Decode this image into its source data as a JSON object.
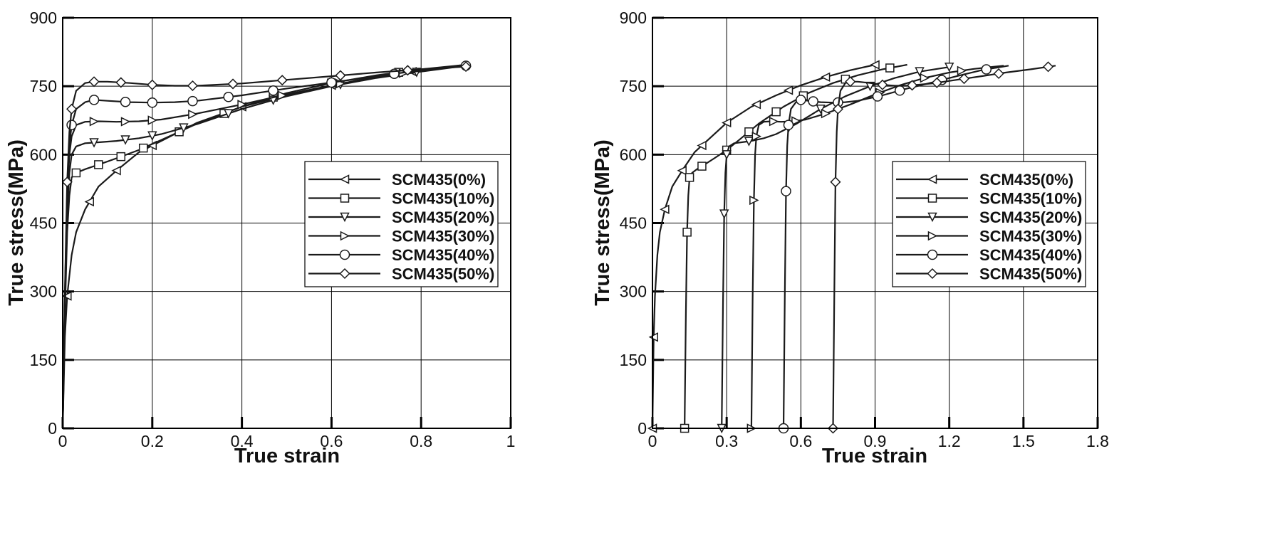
{
  "chart_data": [
    {
      "type": "line",
      "xlabel": "True strain",
      "ylabel": "True stress(MPa)",
      "xlim": [
        0,
        1
      ],
      "ylim": [
        0,
        900
      ],
      "xticks": [
        0,
        0.2,
        0.4,
        0.6,
        0.8,
        1
      ],
      "xtick_labels": [
        "0",
        "0.2",
        "0.4",
        "0.6",
        "0.8",
        "1"
      ],
      "yticks": [
        0,
        150,
        300,
        450,
        600,
        750,
        900
      ],
      "ytick_labels": [
        "0",
        "150",
        "300",
        "450",
        "600",
        "750",
        "900"
      ],
      "grid": true,
      "legend_position": "center-right",
      "series": [
        {
          "name": "SCM435(0%)",
          "marker": "triangle-left",
          "x": [
            0,
            0.005,
            0.01,
            0.02,
            0.03,
            0.05,
            0.08,
            0.12,
            0.17,
            0.22,
            0.3,
            0.4,
            0.5,
            0.6,
            0.7,
            0.8,
            0.9
          ],
          "y": [
            0,
            200,
            290,
            380,
            430,
            480,
            530,
            565,
            605,
            630,
            670,
            705,
            730,
            752,
            770,
            785,
            797
          ],
          "marker_x": [
            0.01,
            0.06,
            0.12,
            0.2,
            0.4,
            0.6,
            0.78
          ]
        },
        {
          "name": "SCM435(10%)",
          "marker": "square",
          "x": [
            0,
            0.005,
            0.01,
            0.015,
            0.02,
            0.03,
            0.05,
            0.08,
            0.12,
            0.17,
            0.22,
            0.3,
            0.4,
            0.5,
            0.6,
            0.7,
            0.8,
            0.9
          ],
          "y": [
            0,
            250,
            430,
            510,
            550,
            560,
            568,
            578,
            592,
            610,
            632,
            668,
            705,
            735,
            757,
            774,
            787,
            797
          ],
          "marker_x": [
            0.03,
            0.08,
            0.13,
            0.18,
            0.26,
            0.36,
            0.47,
            0.6,
            0.75
          ]
        },
        {
          "name": "SCM435(20%)",
          "marker": "triangle-down",
          "x": [
            0,
            0.005,
            0.01,
            0.015,
            0.02,
            0.03,
            0.05,
            0.08,
            0.12,
            0.17,
            0.22,
            0.3,
            0.4,
            0.5,
            0.6,
            0.7,
            0.8,
            0.9
          ],
          "y": [
            0,
            270,
            470,
            560,
            600,
            618,
            625,
            627,
            630,
            636,
            645,
            667,
            700,
            728,
            750,
            768,
            782,
            795
          ],
          "marker_x": [
            0.07,
            0.14,
            0.2,
            0.27,
            0.37,
            0.47,
            0.62,
            0.79
          ]
        },
        {
          "name": "SCM435(30%)",
          "marker": "triangle-right",
          "x": [
            0,
            0.005,
            0.01,
            0.015,
            0.02,
            0.03,
            0.05,
            0.08,
            0.12,
            0.17,
            0.22,
            0.3,
            0.4,
            0.5,
            0.6,
            0.7,
            0.8,
            0.9
          ],
          "y": [
            0,
            280,
            500,
            600,
            640,
            665,
            672,
            673,
            672,
            673,
            677,
            690,
            710,
            732,
            752,
            770,
            784,
            795
          ],
          "marker_x": [
            0.07,
            0.14,
            0.2,
            0.29,
            0.4,
            0.49,
            0.62,
            0.76
          ]
        },
        {
          "name": "SCM435(40%)",
          "marker": "circle",
          "x": [
            0,
            0.005,
            0.01,
            0.015,
            0.02,
            0.03,
            0.05,
            0.07,
            0.1,
            0.15,
            0.2,
            0.25,
            0.3,
            0.4,
            0.5,
            0.6,
            0.7,
            0.8,
            0.9
          ],
          "y": [
            0,
            290,
            520,
            620,
            665,
            700,
            715,
            720,
            718,
            715,
            714,
            715,
            718,
            730,
            745,
            758,
            772,
            785,
            795
          ],
          "marker_x": [
            0.02,
            0.07,
            0.14,
            0.2,
            0.29,
            0.37,
            0.47,
            0.6,
            0.74,
            0.9
          ]
        },
        {
          "name": "SCM435(50%)",
          "marker": "diamond",
          "x": [
            0,
            0.005,
            0.01,
            0.015,
            0.02,
            0.03,
            0.05,
            0.07,
            0.1,
            0.15,
            0.2,
            0.25,
            0.3,
            0.4,
            0.5,
            0.6,
            0.7,
            0.8,
            0.9
          ],
          "y": [
            0,
            300,
            540,
            650,
            700,
            740,
            757,
            760,
            760,
            757,
            753,
            751,
            751,
            756,
            764,
            772,
            780,
            787,
            793
          ],
          "marker_x": [
            0.01,
            0.02,
            0.07,
            0.13,
            0.2,
            0.29,
            0.38,
            0.49,
            0.62,
            0.77,
            0.9
          ]
        }
      ]
    },
    {
      "type": "line",
      "xlabel": "True strain",
      "ylabel": "True stress(MPa)",
      "xlim": [
        0,
        1.8
      ],
      "ylim": [
        0,
        900
      ],
      "xticks": [
        0,
        0.3,
        0.6,
        0.9,
        1.2,
        1.5,
        1.8
      ],
      "xtick_labels": [
        "0",
        "0.3",
        "0.6",
        "0.9",
        "1.2",
        "1.5",
        "1.8"
      ],
      "yticks": [
        0,
        150,
        300,
        450,
        600,
        750,
        900
      ],
      "ytick_labels": [
        "0",
        "150",
        "300",
        "450",
        "600",
        "750",
        "900"
      ],
      "grid": true,
      "legend_position": "center-right",
      "series": [
        {
          "name": "SCM435(0%)",
          "marker": "triangle-left",
          "x": [
            0,
            0.005,
            0.01,
            0.02,
            0.03,
            0.05,
            0.08,
            0.12,
            0.17,
            0.22,
            0.3,
            0.4,
            0.5,
            0.6,
            0.7,
            0.8,
            0.9
          ],
          "y": [
            0,
            200,
            290,
            380,
            430,
            480,
            530,
            565,
            605,
            630,
            670,
            705,
            730,
            752,
            770,
            785,
            797
          ],
          "marker_x": [
            0,
            0.005,
            0.05,
            0.12,
            0.2,
            0.3,
            0.42,
            0.55,
            0.7,
            0.9
          ]
        },
        {
          "name": "SCM435(10%)",
          "marker": "square",
          "x": [
            0.13,
            0.135,
            0.14,
            0.145,
            0.15,
            0.16,
            0.18,
            0.21,
            0.25,
            0.3,
            0.35,
            0.43,
            0.53,
            0.63,
            0.73,
            0.83,
            0.93,
            1.03
          ],
          "y": [
            0,
            250,
            430,
            510,
            550,
            560,
            568,
            578,
            592,
            610,
            632,
            668,
            705,
            735,
            757,
            774,
            787,
            797
          ],
          "marker_x": [
            0.13,
            0.14,
            0.15,
            0.2,
            0.3,
            0.39,
            0.5,
            0.61,
            0.78,
            0.96
          ]
        },
        {
          "name": "SCM435(20%)",
          "marker": "triangle-down",
          "x": [
            0.28,
            0.285,
            0.29,
            0.295,
            0.3,
            0.31,
            0.33,
            0.36,
            0.4,
            0.45,
            0.5,
            0.58,
            0.68,
            0.78,
            0.88,
            0.98,
            1.08,
            1.2
          ],
          "y": [
            0,
            270,
            470,
            560,
            600,
            618,
            625,
            627,
            630,
            636,
            645,
            667,
            700,
            728,
            750,
            768,
            782,
            792
          ],
          "marker_x": [
            0.28,
            0.29,
            0.3,
            0.39,
            0.55,
            0.68,
            0.88,
            1.08,
            1.2
          ]
        },
        {
          "name": "SCM435(30%)",
          "marker": "triangle-right",
          "x": [
            0.4,
            0.405,
            0.41,
            0.415,
            0.42,
            0.43,
            0.45,
            0.48,
            0.52,
            0.57,
            0.62,
            0.7,
            0.8,
            0.9,
            1.0,
            1.1,
            1.2,
            1.3,
            1.42
          ],
          "y": [
            0,
            280,
            500,
            600,
            640,
            665,
            672,
            673,
            672,
            673,
            677,
            690,
            710,
            732,
            752,
            768,
            780,
            788,
            795
          ],
          "marker_x": [
            0.4,
            0.41,
            0.42,
            0.49,
            0.58,
            0.7,
            0.92,
            1.1,
            1.25
          ]
        },
        {
          "name": "SCM435(40%)",
          "marker": "circle",
          "x": [
            0.53,
            0.535,
            0.54,
            0.545,
            0.55,
            0.56,
            0.58,
            0.6,
            0.63,
            0.68,
            0.73,
            0.78,
            0.83,
            0.93,
            1.03,
            1.13,
            1.23,
            1.33,
            1.44
          ],
          "y": [
            0,
            290,
            520,
            620,
            665,
            700,
            715,
            720,
            718,
            715,
            714,
            715,
            718,
            730,
            745,
            758,
            772,
            785,
            795
          ],
          "marker_x": [
            0.53,
            0.54,
            0.55,
            0.6,
            0.65,
            0.75,
            0.91,
            1.0,
            1.17,
            1.35
          ]
        },
        {
          "name": "SCM435(50%)",
          "marker": "diamond",
          "x": [
            0.73,
            0.735,
            0.74,
            0.745,
            0.75,
            0.76,
            0.78,
            0.8,
            0.83,
            0.88,
            0.93,
            0.98,
            1.03,
            1.13,
            1.23,
            1.33,
            1.43,
            1.53,
            1.63
          ],
          "y": [
            0,
            280,
            540,
            650,
            700,
            740,
            757,
            760,
            760,
            757,
            753,
            751,
            751,
            756,
            764,
            772,
            780,
            787,
            795
          ],
          "marker_x": [
            0.73,
            0.74,
            0.75,
            0.8,
            0.93,
            1.05,
            1.15,
            1.26,
            1.4,
            1.6
          ]
        }
      ]
    }
  ]
}
